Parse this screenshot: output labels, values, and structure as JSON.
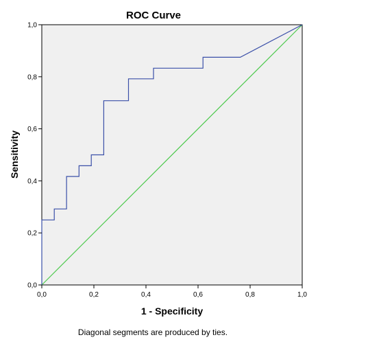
{
  "chart_data": {
    "type": "line",
    "title": "ROC Curve",
    "xlabel": "1 - Specificity",
    "ylabel": "Sensitivity",
    "xlim": [
      0,
      1
    ],
    "ylim": [
      0,
      1
    ],
    "x_ticks": [
      "0,0",
      "0,2",
      "0,4",
      "0,6",
      "0,8",
      "1,0"
    ],
    "y_ticks": [
      "0,0",
      "0,2",
      "0,4",
      "0,6",
      "0,8",
      "1,0"
    ],
    "footnote": "Diagonal segments are produced by ties.",
    "grid": false,
    "background": "#f0f0f0",
    "series": [
      {
        "color": "#3a4fa8",
        "x": [
          0,
          0,
          0.048,
          0.048,
          0.095,
          0.095,
          0.143,
          0.143,
          0.19,
          0.19,
          0.238,
          0.238,
          0.333,
          0.333,
          0.429,
          0.429,
          0.619,
          0.619,
          0.762,
          1.0
        ],
        "y": [
          0,
          0.25,
          0.25,
          0.292,
          0.292,
          0.417,
          0.417,
          0.458,
          0.458,
          0.5,
          0.5,
          0.708,
          0.708,
          0.792,
          0.792,
          0.833,
          0.833,
          0.875,
          0.875,
          1.0
        ]
      },
      {
        "color": "#4cc94c",
        "x": [
          0,
          1
        ],
        "y": [
          0,
          1
        ]
      }
    ]
  }
}
